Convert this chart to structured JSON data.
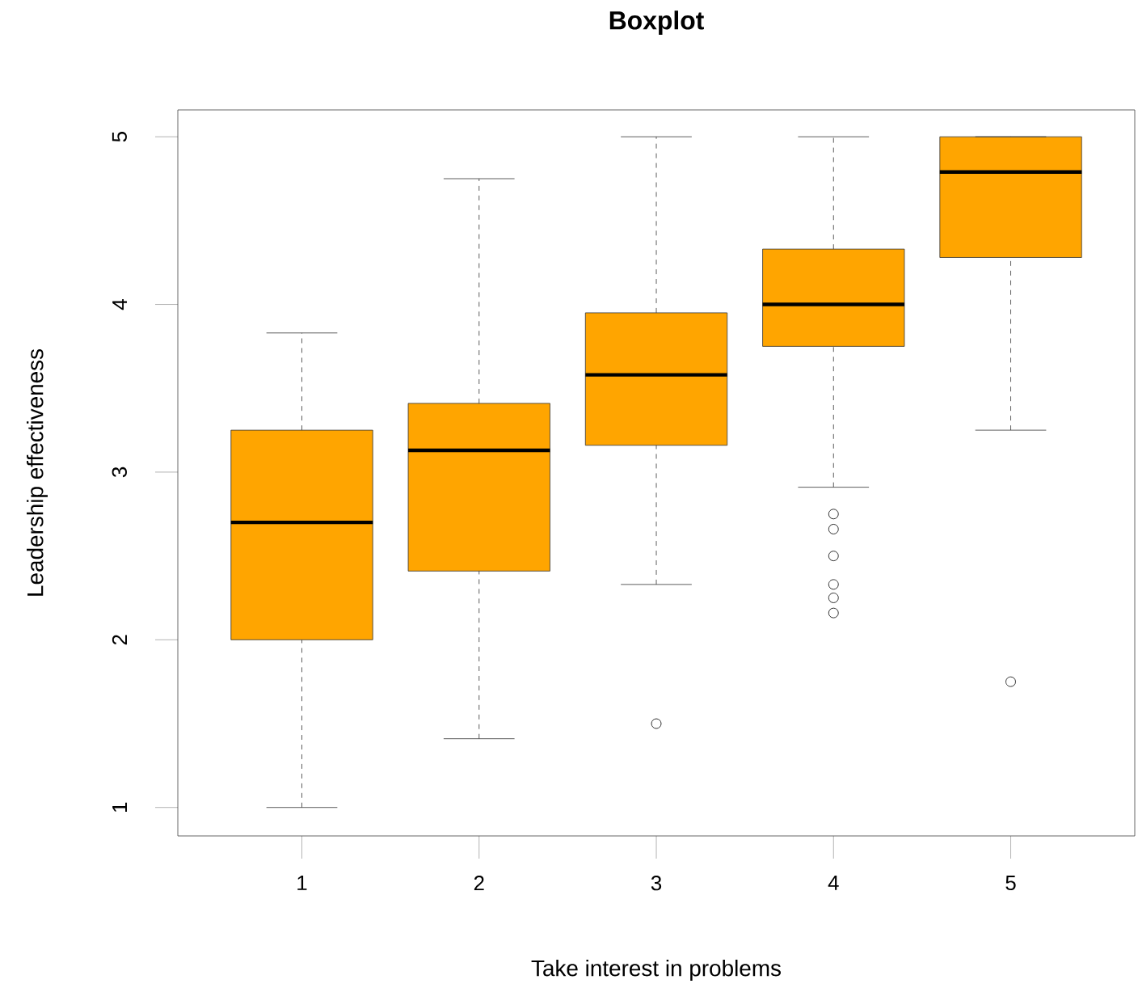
{
  "chart_data": {
    "type": "box",
    "title": "Boxplot",
    "xlabel": "Take interest in problems",
    "ylabel": "Leadership effectiveness",
    "categories": [
      "1",
      "2",
      "3",
      "4",
      "5"
    ],
    "ylim": [
      0.83,
      5.16
    ],
    "yticks": [
      1,
      2,
      3,
      4,
      5
    ],
    "marker": "circle",
    "series": [
      {
        "color": "#ffa500",
        "boxes": [
          {
            "low": 1.0,
            "q1": 2.0,
            "median": 2.7,
            "q3": 3.25,
            "high": 3.83
          },
          {
            "low": 1.41,
            "q1": 2.41,
            "median": 3.13,
            "q3": 3.41,
            "high": 4.75
          },
          {
            "low": 2.33,
            "q1": 3.16,
            "median": 3.58,
            "q3": 3.95,
            "high": 5.0,
            "outliers": [
              1.5
            ]
          },
          {
            "low": 2.91,
            "q1": 3.75,
            "median": 4.0,
            "q3": 4.33,
            "high": 5.0,
            "outliers": [
              2.75,
              2.66,
              2.5,
              2.33,
              2.25,
              2.16
            ]
          },
          {
            "low": 3.25,
            "q1": 4.28,
            "median": 4.79,
            "q3": 5.0,
            "high": 5.0,
            "outliers": [
              1.75
            ]
          }
        ]
      }
    ]
  }
}
